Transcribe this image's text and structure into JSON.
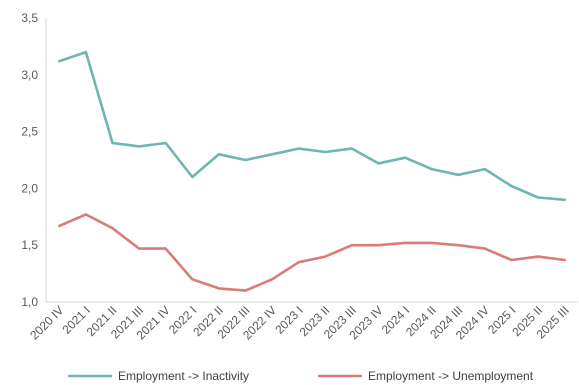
{
  "chart_data": {
    "type": "line",
    "title": "",
    "xlabel": "",
    "ylabel": "",
    "ylim": [
      1.0,
      3.5
    ],
    "yticks": [
      "1,0",
      "1,5",
      "2,0",
      "2,5",
      "3,0",
      "3,5"
    ],
    "grid": false,
    "legend_position": "bottom",
    "categories": [
      "2020 IV",
      "2021 I",
      "2021 II",
      "2021 III",
      "2021 IV",
      "2022 I",
      "2022 II",
      "2022 III",
      "2022 IV",
      "2023 I",
      "2023 II",
      "2023 III",
      "2023 IV",
      "2024 I",
      "2024 II",
      "2024 III",
      "2024 IV",
      "2025 I",
      "2025 II",
      "2025 III"
    ],
    "series": [
      {
        "name": "Employment -> Inactivity",
        "color": "#6fb5b1",
        "values": [
          3.12,
          3.2,
          2.4,
          2.37,
          2.4,
          2.1,
          2.3,
          2.25,
          2.3,
          2.35,
          2.32,
          2.35,
          2.22,
          2.27,
          2.17,
          2.12,
          2.17,
          2.02,
          1.92,
          1.9
        ]
      },
      {
        "name": "Employment -> Unemployment",
        "color": "#d97b7b",
        "values": [
          1.67,
          1.77,
          1.65,
          1.47,
          1.47,
          1.2,
          1.12,
          1.1,
          1.2,
          1.35,
          1.4,
          1.5,
          1.5,
          1.52,
          1.52,
          1.5,
          1.47,
          1.37,
          1.4,
          1.37
        ]
      }
    ]
  }
}
